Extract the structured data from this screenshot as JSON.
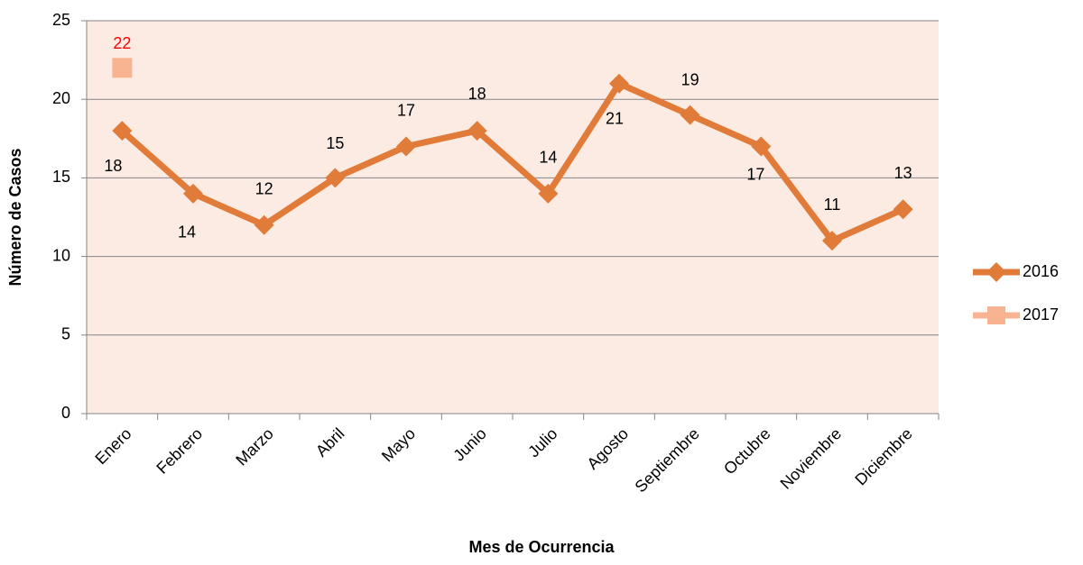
{
  "chart_data": {
    "type": "line",
    "x_label": "Mes de Ocurrencia",
    "y_label": "Número de Casos",
    "categories": [
      "Enero",
      "Febrero",
      "Marzo",
      "Abril",
      "Mayo",
      "Junio",
      "Julio",
      "Agosto",
      "Septiembre",
      "Octubre",
      "Noviembre",
      "Diciembre"
    ],
    "series": [
      {
        "name": "2016",
        "color": "#e07b39",
        "marker": "diamond",
        "values": [
          18,
          14,
          12,
          15,
          17,
          18,
          14,
          21,
          19,
          17,
          11,
          13
        ]
      },
      {
        "name": "2017",
        "color": "#f8b490",
        "marker": "square",
        "label_color": "#ff0000",
        "values": [
          22,
          null,
          null,
          null,
          null,
          null,
          null,
          null,
          null,
          null,
          null,
          null
        ]
      }
    ],
    "ylim": [
      0,
      25
    ],
    "yticks": [
      0,
      5,
      10,
      15,
      20,
      25
    ],
    "grid": true,
    "legend": "right",
    "plot_background": "#fcebe3"
  }
}
